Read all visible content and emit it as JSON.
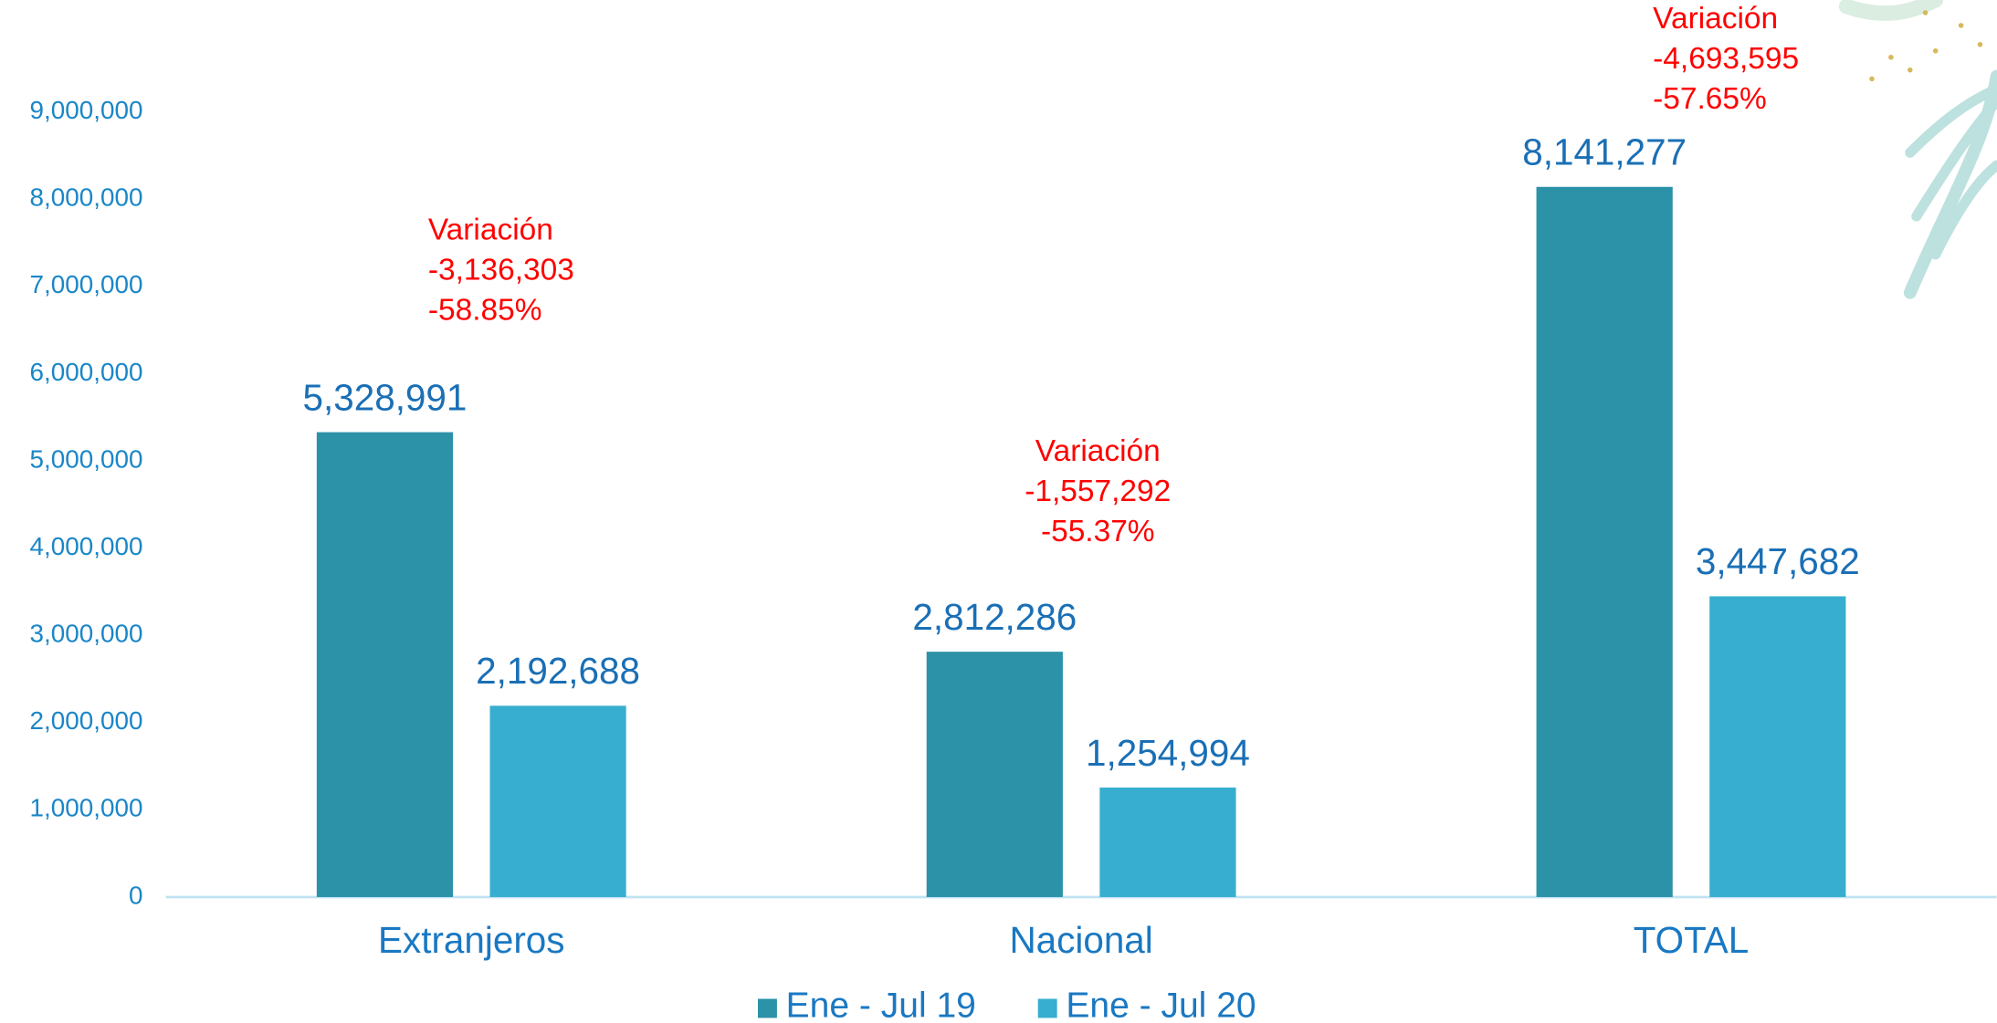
{
  "chart_data": {
    "type": "bar",
    "categories": [
      "Extranjeros",
      "Nacional",
      "TOTAL"
    ],
    "series": [
      {
        "name": "Ene - Jul 19",
        "color": "#2b92a8",
        "values": [
          5328991,
          2812286,
          8141277
        ],
        "value_labels": [
          "5,328,991",
          "2,812,286",
          "8,141,277"
        ]
      },
      {
        "name": "Ene - Jul 20",
        "color": "#37aecf",
        "values": [
          2192688,
          1254994,
          3447682
        ],
        "value_labels": [
          "2,192,688",
          "1,254,994",
          "3,447,682"
        ]
      }
    ],
    "ylim": [
      0,
      9000000
    ],
    "yticks": [
      0,
      {
        "value": 1000000,
        "label": "1,000,000"
      },
      {
        "value": 2000000,
        "label": "2,000,000"
      },
      {
        "value": 3000000,
        "label": "3,000,000"
      },
      {
        "value": 4000000,
        "label": "4,000,000"
      },
      {
        "value": 5000000,
        "label": "5,000,000"
      },
      {
        "value": 6000000,
        "label": "6,000,000"
      },
      {
        "value": 7000000,
        "label": "7,000,000"
      },
      {
        "value": 8000000,
        "label": "8,000,000"
      },
      {
        "value": 9000000,
        "label": "9,000,000"
      }
    ],
    "grid": false,
    "legend": "bottom",
    "annotations": [
      {
        "lines": [
          "Variación",
          "-3,136,303",
          "-58.85%"
        ]
      },
      {
        "lines": [
          "Variación",
          "-1,557,292",
          "-55.37%"
        ]
      },
      {
        "lines": [
          "Variación",
          "-4,693,595",
          "-57.65%"
        ]
      }
    ]
  }
}
